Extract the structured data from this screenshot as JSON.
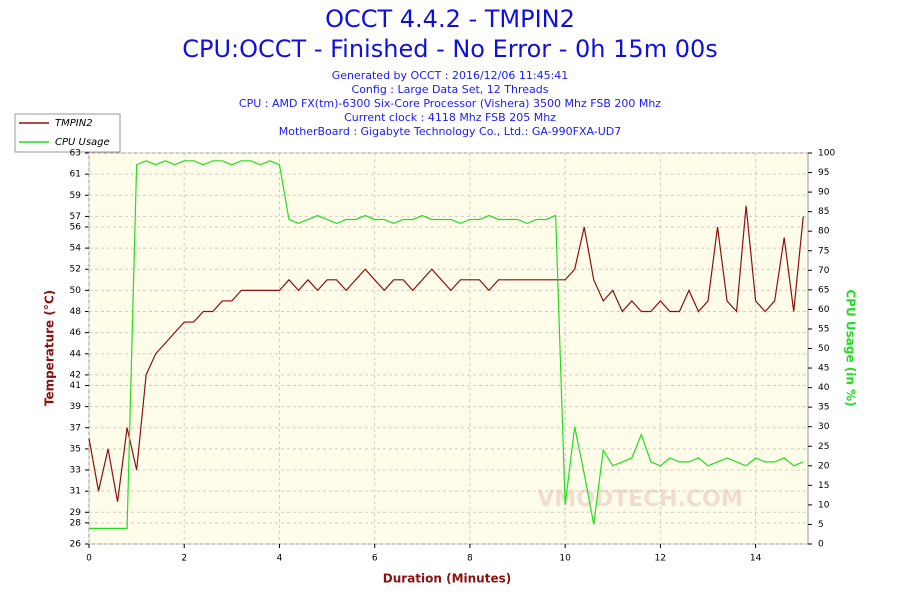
{
  "chart_data": {
    "type": "line",
    "title": "OCCT 4.4.2 - TMPIN2",
    "subtitle": "CPU:OCCT - Finished - No Error - 0h 15m 00s",
    "info": [
      "Generated by OCCT : 2016/12/06 11:45:41",
      "Config : Large Data Set, 12 Threads",
      "CPU : AMD FX(tm)-6300 Six-Core Processor (Vishera) 3500 Mhz FSB 200 Mhz",
      "Current clock : 4118 Mhz FSB 205 Mhz",
      "MotherBoard : Gigabyte Technology Co., Ltd.: GA-990FXA-UD7"
    ],
    "watermark": "VMODTECH.COM",
    "x_label": "Duration (Minutes)",
    "y_label": "Temperature (°C)",
    "y2_label": "CPU Usage (in %)",
    "legend": "top-left",
    "grid": true,
    "xlim": [
      0,
      15.1
    ],
    "xticks": [
      0,
      2,
      4,
      6,
      8,
      10,
      12,
      14
    ],
    "ylim": [
      26,
      63
    ],
    "yticks": [
      26,
      28,
      29,
      31,
      33,
      35,
      37,
      39,
      41,
      42,
      44,
      46,
      48,
      50,
      52,
      54,
      56,
      57,
      59,
      61,
      63
    ],
    "y2lim": [
      0,
      100
    ],
    "y2ticks": [
      0,
      5,
      10,
      15,
      20,
      25,
      30,
      35,
      40,
      45,
      50,
      55,
      60,
      65,
      70,
      75,
      80,
      85,
      90,
      95,
      100
    ],
    "x": [
      0,
      0.2,
      0.4,
      0.6,
      0.8,
      1,
      1.2,
      1.4,
      1.6,
      1.8,
      2,
      2.2,
      2.4,
      2.6,
      2.8,
      3,
      3.2,
      3.4,
      3.6,
      3.8,
      4,
      4.2,
      4.4,
      4.6,
      4.8,
      5,
      5.2,
      5.4,
      5.6,
      5.8,
      6,
      6.2,
      6.4,
      6.6,
      6.8,
      7,
      7.2,
      7.4,
      7.6,
      7.8,
      8,
      8.2,
      8.4,
      8.6,
      8.8,
      9,
      9.2,
      9.4,
      9.6,
      9.8,
      10,
      10.2,
      10.4,
      10.6,
      10.8,
      11,
      11.2,
      11.4,
      11.6,
      11.8,
      12,
      12.2,
      12.4,
      12.6,
      12.8,
      13,
      13.2,
      13.4,
      13.6,
      13.8,
      14,
      14.2,
      14.4,
      14.6,
      14.8,
      15
    ],
    "series": [
      {
        "name": "TMPIN2",
        "color": "#8b1010",
        "values": [
          36,
          31,
          35,
          30,
          37,
          33,
          42,
          44,
          45,
          46,
          47,
          47,
          48,
          48,
          49,
          49,
          50,
          50,
          50,
          50,
          50,
          51,
          50,
          51,
          50,
          51,
          51,
          50,
          51,
          52,
          51,
          50,
          51,
          51,
          50,
          51,
          52,
          51,
          50,
          51,
          51,
          51,
          50,
          51,
          51,
          51,
          51,
          51,
          51,
          51,
          51,
          52,
          56,
          51,
          49,
          50,
          48,
          49,
          48,
          48,
          49,
          48,
          48,
          50,
          48,
          49,
          56,
          49,
          48,
          58,
          49,
          48,
          49,
          55,
          48,
          57
        ]
      },
      {
        "name": "CPU Usage",
        "color": "#22dd22",
        "axis": "y2",
        "values": [
          4,
          4,
          4,
          4,
          4,
          97,
          98,
          97,
          98,
          97,
          98,
          98,
          97,
          98,
          98,
          97,
          98,
          98,
          97,
          98,
          97,
          83,
          82,
          83,
          84,
          83,
          82,
          83,
          83,
          84,
          83,
          83,
          82,
          83,
          83,
          84,
          83,
          83,
          83,
          82,
          83,
          83,
          84,
          83,
          83,
          83,
          82,
          83,
          83,
          84,
          10,
          30,
          18,
          5,
          24,
          20,
          21,
          22,
          28,
          21,
          20,
          22,
          21,
          21,
          22,
          20,
          21,
          22,
          21,
          20,
          22,
          21,
          21,
          22,
          20,
          21
        ]
      }
    ]
  }
}
